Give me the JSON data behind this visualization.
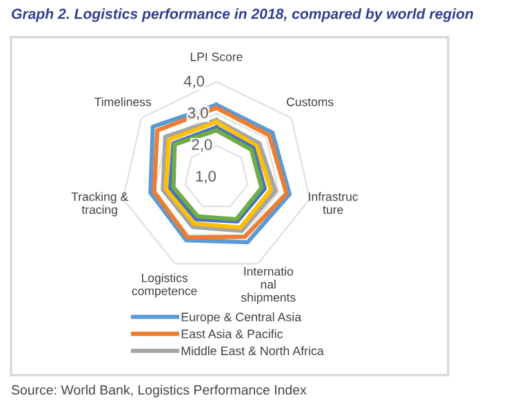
{
  "chart_data": {
    "type": "radar",
    "title": "Graph 2. Logistics performance in 2018, compared by world region",
    "categories": [
      "LPI Score",
      "Customs",
      "Infrastructure",
      "International shipments",
      "Logistics competence",
      "Tracking & tracing",
      "Timeliness"
    ],
    "ylim": [
      1,
      4
    ],
    "yticks": [
      {
        "value": 1,
        "label": "1,0"
      },
      {
        "value": 2,
        "label": "2,0"
      },
      {
        "value": 3,
        "label": "3,0"
      },
      {
        "value": 4,
        "label": "4,0"
      }
    ],
    "grid": true,
    "legend": "bottom",
    "series": [
      {
        "name": "Europe & Central Asia",
        "color": "#5b9bd5",
        "values": [
          3.28,
          3.25,
          3.35,
          3.25,
          3.18,
          3.12,
          3.55
        ]
      },
      {
        "name": "East Asia & Pacific",
        "color": "#ed7d31",
        "values": [
          3.18,
          3.12,
          3.25,
          3.06,
          3.08,
          3.0,
          3.37
        ]
      },
      {
        "name": "Middle East & North Africa",
        "color": "#a5a5a5",
        "values": [
          2.8,
          2.72,
          2.9,
          2.85,
          2.72,
          2.72,
          3.05
        ]
      },
      {
        "color": "#ffc000",
        "values": [
          2.74,
          2.6,
          2.75,
          2.74,
          2.6,
          2.62,
          2.9
        ]
      },
      {
        "color": "#4472c4",
        "values": [
          2.57,
          2.48,
          2.55,
          2.52,
          2.45,
          2.48,
          2.72
        ]
      },
      {
        "color": "#70ad47",
        "values": [
          2.48,
          2.4,
          2.45,
          2.45,
          2.35,
          2.38,
          2.67
        ]
      }
    ],
    "annotations": [
      "Source: World Bank, Logistics Performance Index"
    ]
  }
}
